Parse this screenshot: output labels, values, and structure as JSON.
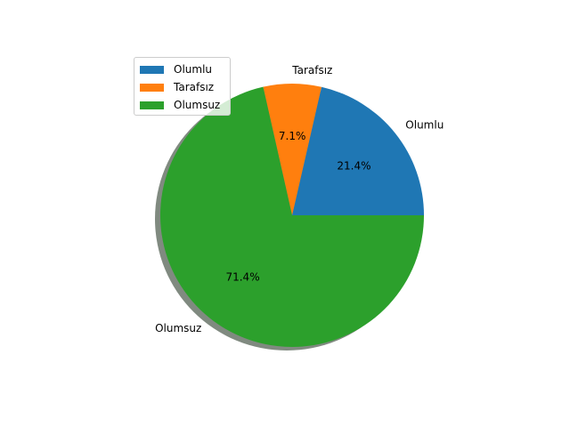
{
  "chart_data": {
    "type": "pie",
    "categories": [
      "Olumlu",
      "Tarafsız",
      "Olumsuz"
    ],
    "values": [
      21.4,
      7.1,
      71.4
    ],
    "autopct_labels": [
      "21.4%",
      "7.1%",
      "71.4%"
    ],
    "colors": [
      "#1f77b4",
      "#ff7f0e",
      "#2ca02c"
    ],
    "shadow": true,
    "legend": "upper-left"
  }
}
